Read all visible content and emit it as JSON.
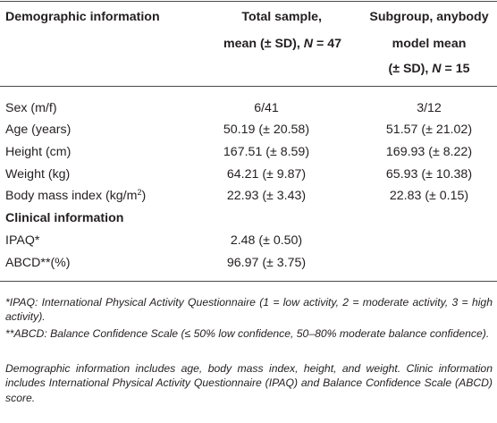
{
  "header": {
    "col1": "Demographic information",
    "col2_line1": "Total sample,",
    "col2_line2": "mean (± SD), N = 47",
    "col3_line1": "Subgroup, anybody",
    "col3_line2": "model mean",
    "col3_line3": "(± SD), N = 15"
  },
  "rows": [
    {
      "label": "Sex (m/f)",
      "total": "6/41",
      "subgroup": "3/12"
    },
    {
      "label": "Age (years)",
      "total": "50.19 (± 20.58)",
      "subgroup": "51.57 (± 21.02)"
    },
    {
      "label": "Height (cm)",
      "total": "167.51 (± 8.59)",
      "subgroup": "169.93 (± 8.22)"
    },
    {
      "label": "Weight (kg)",
      "total": "64.21 (± 9.87)",
      "subgroup": "65.93 (± 10.38)"
    },
    {
      "label_prefix": "Body mass index (kg/m",
      "label_sup": "2",
      "label_suffix": ")",
      "total": "22.93 (± 3.43)",
      "subgroup": "22.83 (± 0.15)"
    }
  ],
  "clinical_heading": "Clinical information",
  "clinical_rows": [
    {
      "label": "IPAQ*",
      "total": "2.48 (± 0.50)",
      "subgroup": ""
    },
    {
      "label": "ABCD**(%)",
      "total": "96.97 (± 3.75)",
      "subgroup": ""
    }
  ],
  "footnotes": [
    "*IPAQ: International Physical Activity Questionnaire (1 = low activity, 2 = moderate activity, 3 = high activity).",
    "**ABCD: Balance Confidence Scale (≤ 50% low confidence, 50–80% moderate balance confidence).",
    "Demographic information includes age, body mass index, height, and weight. Clinic information includes International Physical Activity Questionnaire (IPAQ) and Balance Confidence Scale (ABCD) score."
  ]
}
